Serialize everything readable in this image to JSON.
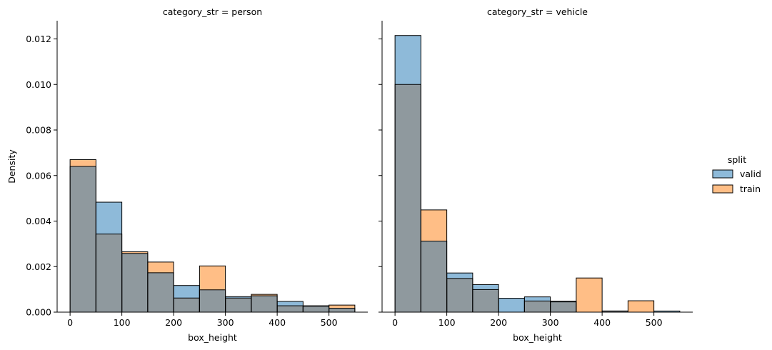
{
  "chart_data": {
    "type": "bar",
    "chart_kind": "facet-histogram",
    "xlabel": "box_height",
    "ylabel": "Density",
    "bin_edges": [
      0,
      50,
      100,
      150,
      200,
      250,
      300,
      350,
      400,
      450,
      500,
      550
    ],
    "xlim": [
      -25,
      575
    ],
    "ylim": [
      0,
      0.0128
    ],
    "xticks": [
      "0",
      "100",
      "200",
      "300",
      "400",
      "500"
    ],
    "yticks": [
      "0.000",
      "0.002",
      "0.004",
      "0.006",
      "0.008",
      "0.010",
      "0.012"
    ],
    "legend": {
      "title": "split",
      "position": "right",
      "entries": [
        {
          "label": "valid",
          "color": "#1f77b4"
        },
        {
          "label": "train",
          "color": "#ff7f0e"
        }
      ]
    },
    "facets": [
      {
        "title": "category_str = person",
        "series": [
          {
            "name": "valid",
            "values": [
              0.0064,
              0.00483,
              0.00258,
              0.00173,
              0.00117,
              0.00098,
              0.00068,
              0.00072,
              0.00047,
              0.00026,
              0.00017
            ]
          },
          {
            "name": "train",
            "values": [
              0.0067,
              0.00343,
              0.00265,
              0.0022,
              0.00062,
              0.00203,
              0.00062,
              0.00078,
              0.00028,
              0.00028,
              0.00031
            ]
          }
        ]
      },
      {
        "title": "category_str = vehicle",
        "series": [
          {
            "name": "valid",
            "values": [
              0.01215,
              0.00312,
              0.00172,
              0.00121,
              0.00061,
              0.00067,
              0.00048,
              0.0,
              5e-05,
              0.0,
              5e-05
            ]
          },
          {
            "name": "train",
            "values": [
              0.01,
              0.00449,
              0.00148,
              0.00099,
              0.0,
              0.00049,
              0.00045,
              0.0015,
              5e-05,
              0.0005,
              0.0
            ]
          }
        ]
      }
    ],
    "colors": {
      "valid_fill": "#8ebad9",
      "train_fill": "#ffbe86",
      "overlap_fill": "#8f999e",
      "edge": "#000000"
    }
  }
}
